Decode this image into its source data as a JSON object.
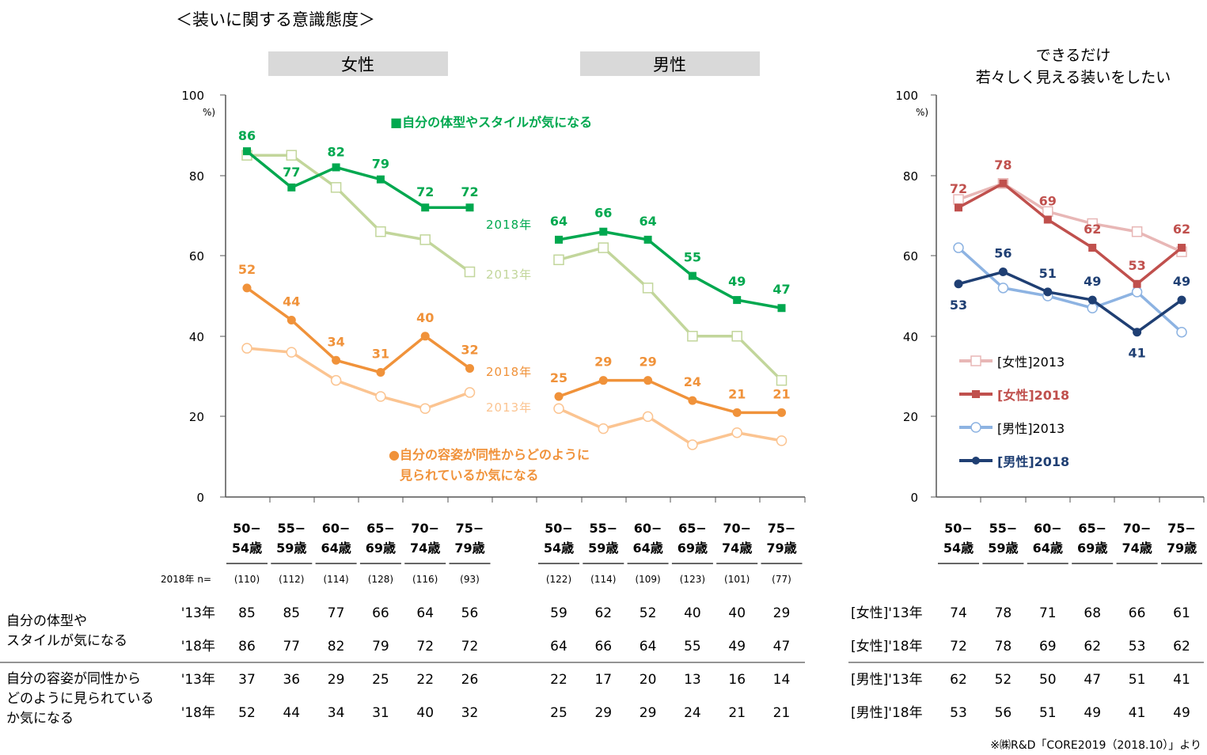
{
  "page_title": "＜装いに関する意識態度＞",
  "colors": {
    "green2018": "#00a84f",
    "green2013": "#c2d69b",
    "orange2018": "#f0923a",
    "orange2013": "#fbc491",
    "red2018": "#c0504d",
    "pink2013": "#e8b7b6",
    "navy2018": "#1f3f73",
    "blue2013": "#8db3e2",
    "header_bg": "#d9d9d9"
  },
  "left_chart": {
    "female_header": "女性",
    "male_header": "男性",
    "y_tick_labels": [
      "0",
      "20",
      "40",
      "60",
      "80",
      "100"
    ],
    "y_unit": "%)",
    "legend_style": "■自分の体型やスタイルが気になる",
    "legend_appear_line1": "●自分の容姿が同性からどのように",
    "legend_appear_line2": "見られているか気になる",
    "label_2018_style": "2018年",
    "label_2013_style": "2013年",
    "label_2018_appear": "2018年",
    "label_2013_appear": "2013年",
    "age_line1": [
      "50−",
      "55−",
      "60−",
      "65−",
      "70−",
      "75−"
    ],
    "age_line2": [
      "54歳",
      "59歳",
      "64歳",
      "69歳",
      "74歳",
      "79歳"
    ],
    "n_label": "2018年 n=",
    "n_female": [
      "(110)",
      "(112)",
      "(114)",
      "(128)",
      "(116)",
      "(93)"
    ],
    "n_male": [
      "(122)",
      "(114)",
      "(109)",
      "(123)",
      "(101)",
      "(77)"
    ]
  },
  "right_chart": {
    "title_line1": "できるだけ",
    "title_line2": "若々しく見える装いをしたい",
    "y_tick_labels": [
      "0",
      "20",
      "40",
      "60",
      "80",
      "100"
    ],
    "y_unit": "%)",
    "legend": [
      "[女性]2013",
      "[女性]2018",
      "[男性]2013",
      "[男性]2018"
    ],
    "age_line1": [
      "50−",
      "55−",
      "60−",
      "65−",
      "70−",
      "75−"
    ],
    "age_line2": [
      "54歳",
      "59歳",
      "64歳",
      "69歳",
      "74歳",
      "79歳"
    ]
  },
  "table_left": {
    "row_label_style": [
      "自分の体型や",
      "スタイルが気になる"
    ],
    "row_label_appear": [
      "自分の容姿が同性から",
      "どのように見られている",
      "か気になる"
    ],
    "year_13": "'13年",
    "year_18": "'18年",
    "rows": [
      {
        "female": [
          "85",
          "85",
          "77",
          "66",
          "64",
          "56"
        ],
        "male": [
          "59",
          "62",
          "52",
          "40",
          "40",
          "29"
        ]
      },
      {
        "female": [
          "86",
          "77",
          "82",
          "79",
          "72",
          "72"
        ],
        "male": [
          "64",
          "66",
          "64",
          "55",
          "49",
          "47"
        ]
      },
      {
        "female": [
          "37",
          "36",
          "29",
          "25",
          "22",
          "26"
        ],
        "male": [
          "22",
          "17",
          "20",
          "13",
          "16",
          "14"
        ]
      },
      {
        "female": [
          "52",
          "44",
          "34",
          "31",
          "40",
          "32"
        ],
        "male": [
          "25",
          "29",
          "29",
          "24",
          "21",
          "21"
        ]
      }
    ]
  },
  "table_right": {
    "rows": [
      {
        "label": "[女性]'13年",
        "values": [
          "74",
          "78",
          "71",
          "68",
          "66",
          "61"
        ]
      },
      {
        "label": "[女性]'18年",
        "values": [
          "72",
          "78",
          "69",
          "62",
          "53",
          "62"
        ]
      },
      {
        "label": "[男性]'13年",
        "values": [
          "62",
          "52",
          "50",
          "47",
          "51",
          "41"
        ]
      },
      {
        "label": "[男性]'18年",
        "values": [
          "53",
          "56",
          "51",
          "49",
          "41",
          "49"
        ]
      }
    ]
  },
  "source": "※㈱R&D「CORE2019（2018.10）」より",
  "chart_data": [
    {
      "type": "line",
      "title": "自分の体型やスタイルが気になる / 自分の容姿が同性からどのように見られているか気になる",
      "categories": [
        "50-54歳",
        "55-59歳",
        "60-64歳",
        "65-69歳",
        "70-74歳",
        "75-79歳"
      ],
      "ylim": [
        0,
        100
      ],
      "ylabel": "%",
      "series": [
        {
          "name": "女性 体型・スタイル 2018年",
          "values": [
            86,
            77,
            82,
            79,
            72,
            72
          ]
        },
        {
          "name": "女性 体型・スタイル 2013年",
          "values": [
            85,
            85,
            77,
            66,
            64,
            56
          ]
        },
        {
          "name": "男性 体型・スタイル 2018年",
          "values": [
            64,
            66,
            64,
            55,
            49,
            47
          ]
        },
        {
          "name": "男性 体型・スタイル 2013年",
          "values": [
            59,
            62,
            52,
            40,
            40,
            29
          ]
        },
        {
          "name": "女性 容姿 2018年",
          "values": [
            52,
            44,
            34,
            31,
            40,
            32
          ]
        },
        {
          "name": "女性 容姿 2013年",
          "values": [
            37,
            36,
            29,
            25,
            22,
            26
          ]
        },
        {
          "name": "男性 容姿 2018年",
          "values": [
            25,
            29,
            29,
            24,
            21,
            21
          ]
        },
        {
          "name": "男性 容姿 2013年",
          "values": [
            22,
            17,
            20,
            13,
            16,
            14
          ]
        }
      ]
    },
    {
      "type": "line",
      "title": "できるだけ若々しく見える装いをしたい",
      "categories": [
        "50-54歳",
        "55-59歳",
        "60-64歳",
        "65-69歳",
        "70-74歳",
        "75-79歳"
      ],
      "ylim": [
        0,
        100
      ],
      "ylabel": "%",
      "series": [
        {
          "name": "[女性]2013",
          "values": [
            74,
            78,
            71,
            68,
            66,
            61
          ]
        },
        {
          "name": "[女性]2018",
          "values": [
            72,
            78,
            69,
            62,
            53,
            62
          ]
        },
        {
          "name": "[男性]2013",
          "values": [
            62,
            52,
            50,
            47,
            51,
            41
          ]
        },
        {
          "name": "[男性]2018",
          "values": [
            53,
            56,
            51,
            49,
            41,
            49
          ]
        }
      ]
    }
  ]
}
